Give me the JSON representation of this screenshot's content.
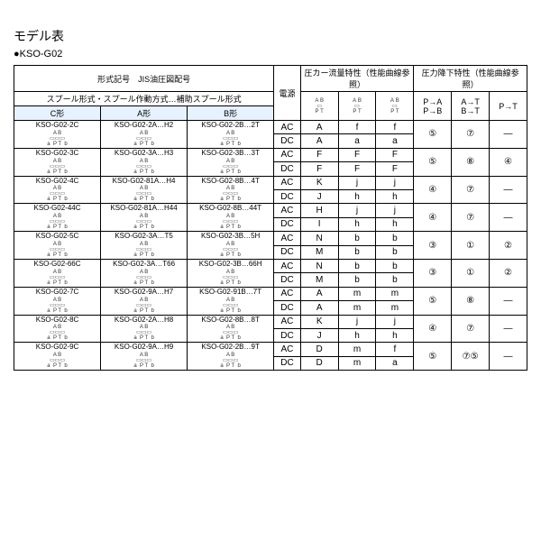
{
  "title": "モデル表",
  "subtitle": "●KSO-G02",
  "headers": {
    "row1_a": "形式記号　JIS油圧図配号",
    "row1_b": "電源",
    "row1_c": "圧カー流量特性（性能曲線参照）",
    "row1_d": "圧力降下特性（性能曲線参照）",
    "row2_a": "スプール形式・スプール作動方式…補助スプール形式",
    "row3_c": "C形",
    "row3_a": "A形",
    "row3_b": "B形",
    "col_pa": "P→A",
    "col_pb": "P→B",
    "col_at": "A→T",
    "col_bt": "B→T",
    "col_pt": "P→T"
  },
  "mini_top": "A B",
  "mini_bot": "P T",
  "mini_side_a": "a",
  "mini_side_b": "b",
  "groups": [
    {
      "c": "KSO-G02-2C",
      "a": "KSO-G02-2A…H2",
      "b": "KSO-G02-2B…2T",
      "rows": [
        {
          "ps": "AC",
          "c1": "A",
          "c2": "f",
          "c3": "f"
        },
        {
          "ps": "DC",
          "c1": "A",
          "c2": "a",
          "c3": "a"
        }
      ],
      "m1": "⑤",
      "m2": "⑦",
      "m3": "—"
    },
    {
      "c": "KSO-G02-3C",
      "a": "KSO-G02-3A…H3",
      "b": "KSO-G02-3B…3T",
      "rows": [
        {
          "ps": "AC",
          "c1": "F",
          "c2": "F",
          "c3": "F"
        },
        {
          "ps": "DC",
          "c1": "F",
          "c2": "F",
          "c3": "F"
        }
      ],
      "m1": "⑤",
      "m2": "⑧",
      "m3": "④"
    },
    {
      "c": "KSO-G02-4C",
      "a": "KSO-G02-81A…H4",
      "b": "KSO-G02-8B…4T",
      "rows": [
        {
          "ps": "AC",
          "c1": "K",
          "c2": "j",
          "c3": "j"
        },
        {
          "ps": "DC",
          "c1": "J",
          "c2": "h",
          "c3": "h"
        }
      ],
      "m1": "④",
      "m2": "⑦",
      "m3": "—"
    },
    {
      "c": "KSO-G02-44C",
      "a": "KSO-G02-81A…H44",
      "b": "KSO-G02-8B…44T",
      "rows": [
        {
          "ps": "AC",
          "c1": "H",
          "c2": "j",
          "c3": "j"
        },
        {
          "ps": "DC",
          "c1": "I",
          "c2": "h",
          "c3": "h"
        }
      ],
      "m1": "④",
      "m2": "⑦",
      "m3": "—"
    },
    {
      "c": "KSO-G02-5C",
      "a": "KSO-G02-3A…T5",
      "b": "KSO-G02-3B…5H",
      "rows": [
        {
          "ps": "AC",
          "c1": "N",
          "c2": "b",
          "c3": "b"
        },
        {
          "ps": "DC",
          "c1": "M",
          "c2": "b",
          "c3": "b"
        }
      ],
      "m1": "③",
      "m2": "①",
      "m3": "②"
    },
    {
      "c": "KSO-G02-66C",
      "a": "KSO-G02-3A…T66",
      "b": "KSO-G02-3B…66H",
      "rows": [
        {
          "ps": "AC",
          "c1": "N",
          "c2": "b",
          "c3": "b"
        },
        {
          "ps": "DC",
          "c1": "M",
          "c2": "b",
          "c3": "b"
        }
      ],
      "m1": "③",
      "m2": "①",
      "m3": "②"
    },
    {
      "c": "KSO-G02-7C",
      "a": "KSO-G02-9A…H7",
      "b": "KSO-G02-91B…7T",
      "rows": [
        {
          "ps": "AC",
          "c1": "A",
          "c2": "m",
          "c3": "m"
        },
        {
          "ps": "DC",
          "c1": "A",
          "c2": "m",
          "c3": "m"
        }
      ],
      "m1": "⑤",
      "m2": "⑧",
      "m3": "—"
    },
    {
      "c": "KSO-G02-8C",
      "a": "KSO-G02-2A…H8",
      "b": "KSO-G02-8B…8T",
      "rows": [
        {
          "ps": "AC",
          "c1": "K",
          "c2": "j",
          "c3": "j"
        },
        {
          "ps": "DC",
          "c1": "J",
          "c2": "h",
          "c3": "h"
        }
      ],
      "m1": "④",
      "m2": "⑦",
      "m3": "—"
    },
    {
      "c": "KSO-G02-9C",
      "a": "KSO-G02-9A…H9",
      "b": "KSO-G02-2B…9T",
      "rows": [
        {
          "ps": "AC",
          "c1": "D",
          "c2": "m",
          "c3": "f"
        },
        {
          "ps": "DC",
          "c1": "D",
          "c2": "m",
          "c3": "a"
        }
      ],
      "m1": "⑤",
      "m2": "⑦⑤",
      "m3": "—"
    }
  ]
}
